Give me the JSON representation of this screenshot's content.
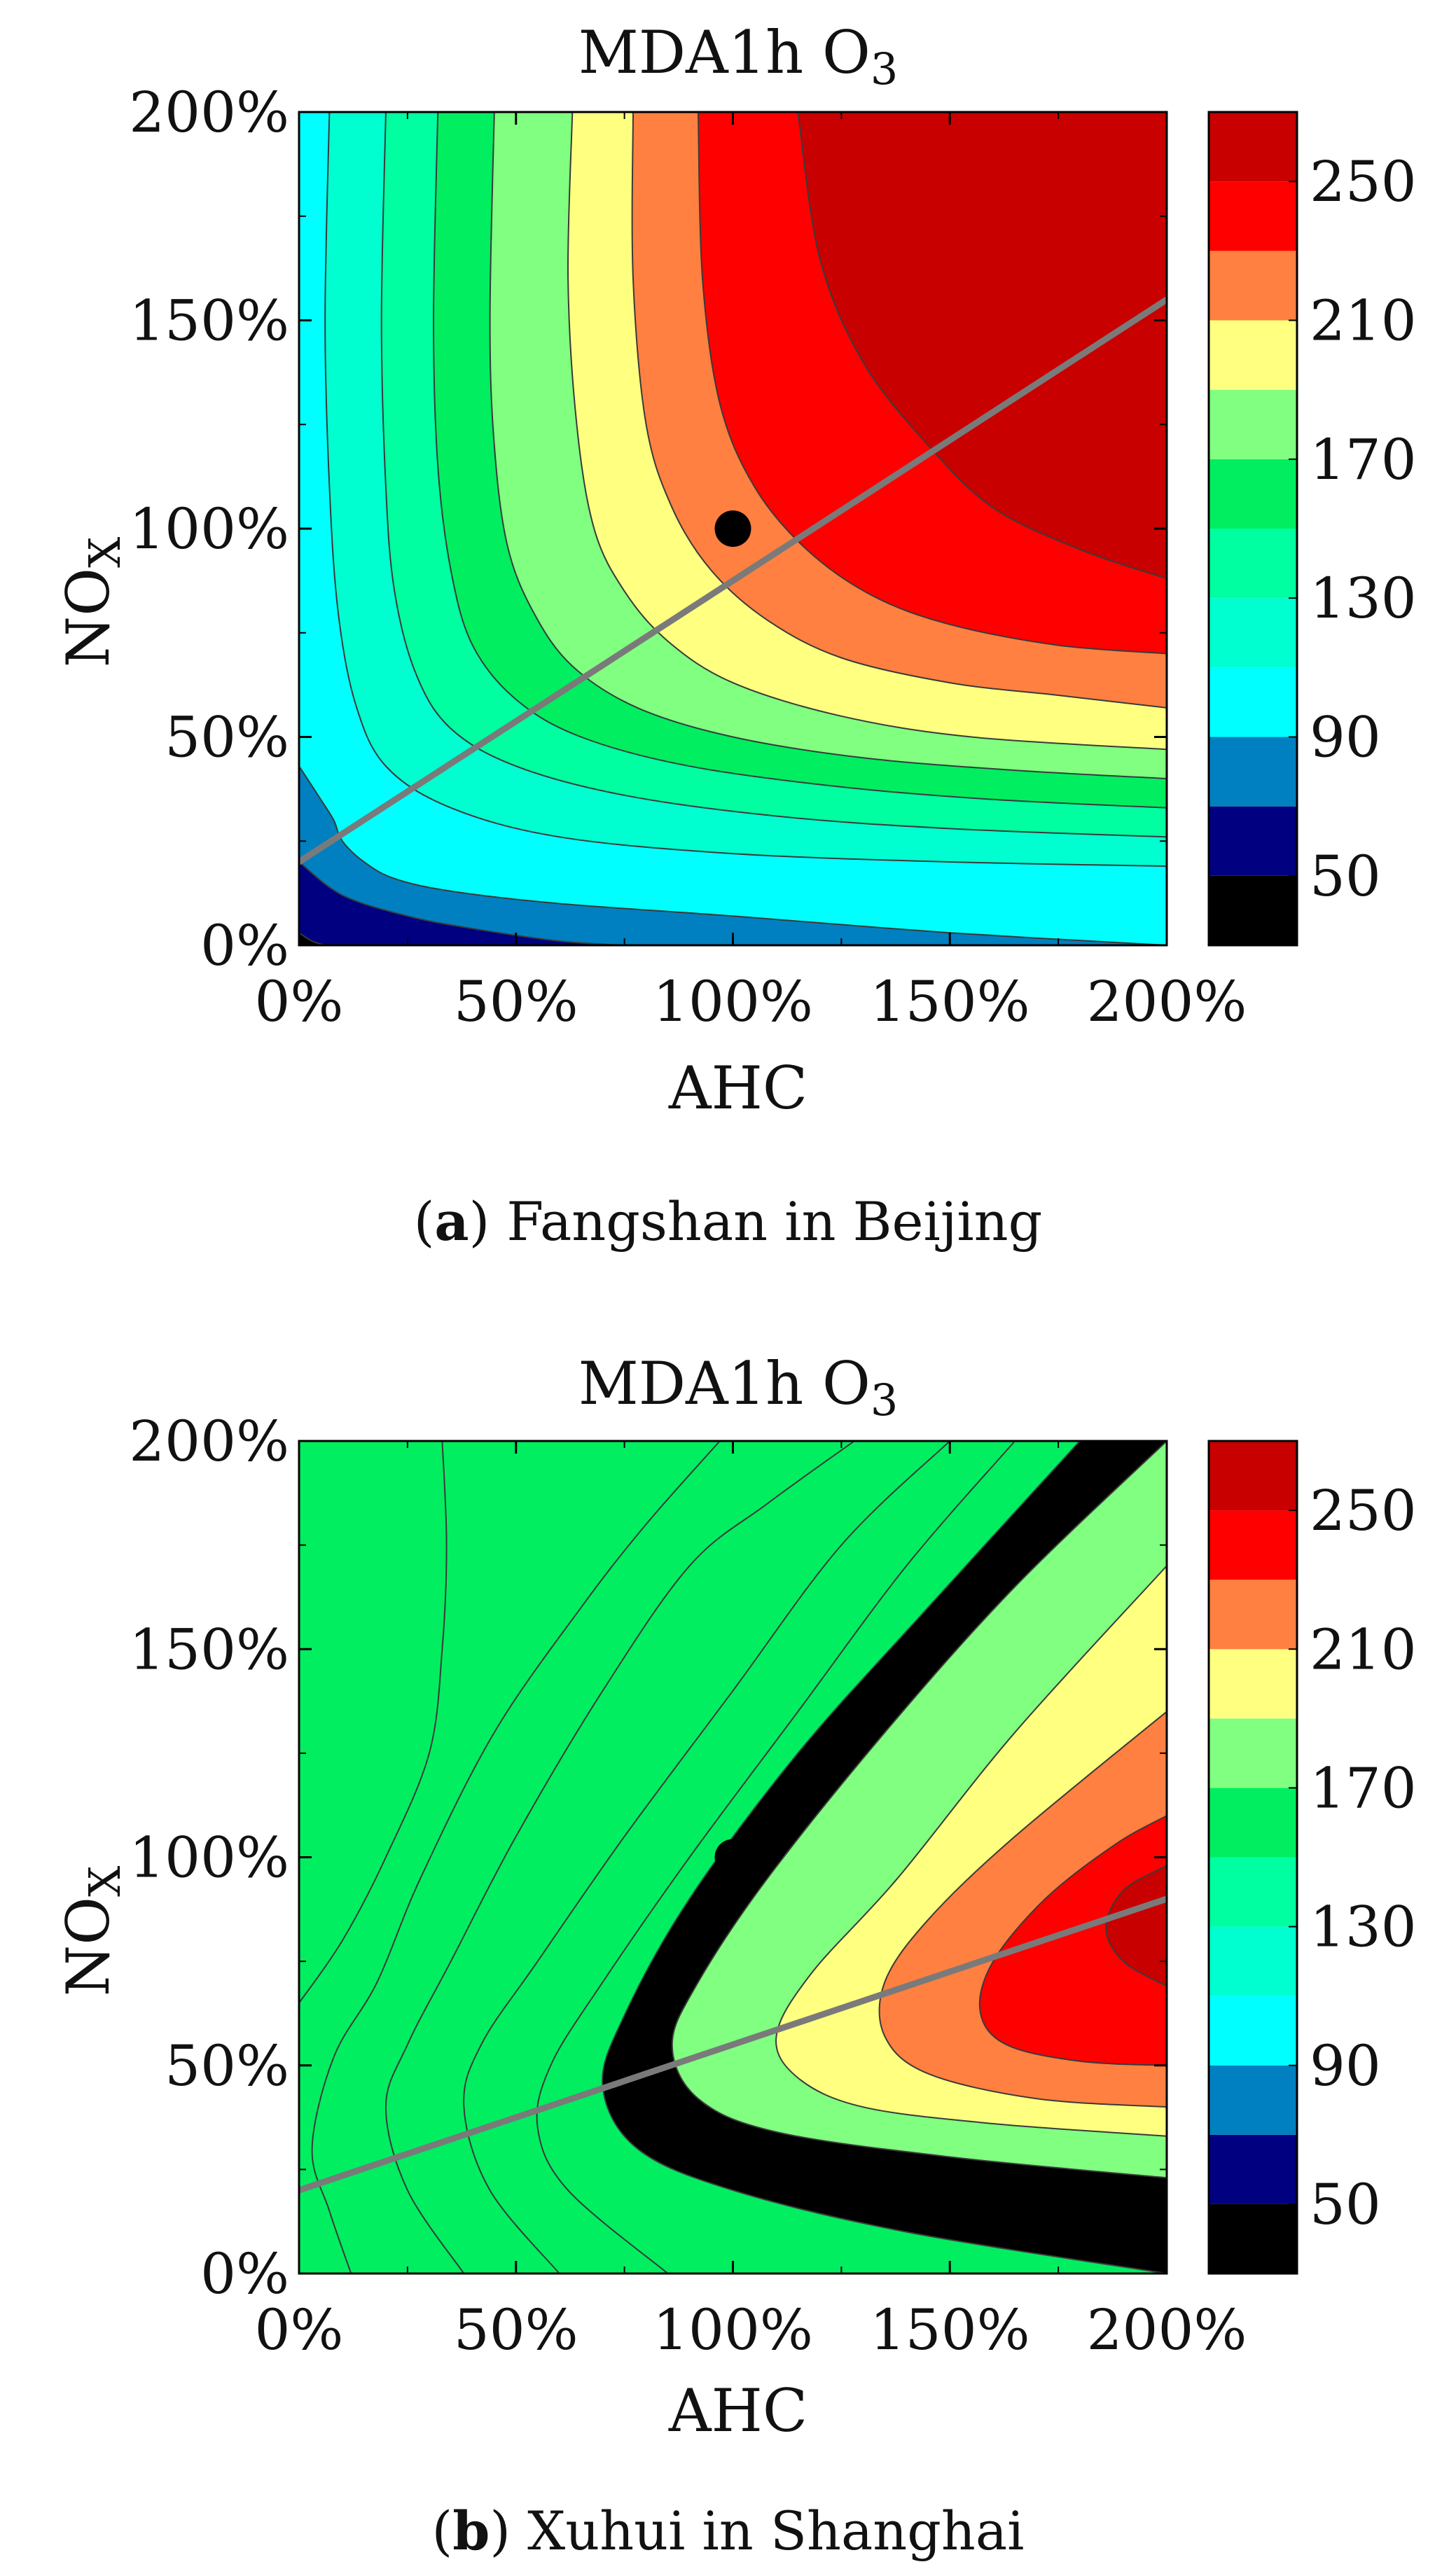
{
  "figure": {
    "panels": [
      {
        "label": "a",
        "caption": "Fangshan in Beijing",
        "title": "MDA1h O3",
        "xlabel": "AHC",
        "ylabel": "NOX"
      },
      {
        "label": "b",
        "caption": "Xuhui in Shanghai",
        "title": "MDA1h O3",
        "xlabel": "AHC",
        "ylabel": "NOX"
      }
    ]
  },
  "chart_data": [
    {
      "type": "heatmap",
      "title": "MDA1h O3",
      "xlabel": "AHC",
      "ylabel": "NOX",
      "xlim": [
        0,
        200
      ],
      "ylim": [
        0,
        200
      ],
      "xticks": [
        "0%",
        "50%",
        "100%",
        "150%",
        "200%"
      ],
      "yticks": [
        "0%",
        "50%",
        "100%",
        "150%",
        "200%"
      ],
      "colorbar": {
        "levels": [
          30,
          50,
          70,
          90,
          110,
          130,
          150,
          170,
          190,
          210,
          230,
          250,
          270
        ],
        "colors": [
          "#000000",
          "#000080",
          "#0080C0",
          "#00FFFF",
          "#00FFD0",
          "#00FFA0",
          "#00EE60",
          "#80FF80",
          "#FFFF80",
          "#FF8040",
          "#FF0000",
          "#C80000"
        ],
        "tick_labels": [
          "50",
          "90",
          "130",
          "170",
          "210",
          "250"
        ]
      },
      "base_point": {
        "x": 100,
        "y": 100
      },
      "ridge_line": {
        "x": [
          0,
          200
        ],
        "y": [
          20,
          155
        ]
      },
      "contours": [
        {
          "level": 50,
          "x": [
            0,
            3,
            6
          ],
          "y": [
            3,
            1,
            0
          ]
        },
        {
          "level": 70,
          "x": [
            0,
            10,
            25,
            40,
            60,
            75
          ],
          "y": [
            20,
            12,
            7,
            4,
            1,
            0
          ]
        },
        {
          "level": 90,
          "x": [
            0,
            5,
            8,
            10,
            15,
            22,
            35,
            60,
            100,
            150,
            200
          ],
          "y": [
            43,
            35,
            30,
            25,
            20,
            16,
            13,
            10,
            7,
            3,
            0
          ]
        },
        {
          "level": 110,
          "x": [
            7,
            6,
            7,
            9,
            13,
            20,
            35,
            60,
            100,
            150,
            200
          ],
          "y": [
            200,
            150,
            110,
            80,
            58,
            43,
            33,
            26,
            22,
            20,
            19
          ]
        },
        {
          "level": 130,
          "x": [
            20,
            19,
            20,
            22,
            27,
            35,
            50,
            75,
            110,
            150,
            200
          ],
          "y": [
            200,
            150,
            110,
            85,
            65,
            52,
            43,
            36,
            31,
            28,
            26
          ]
        },
        {
          "level": 150,
          "x": [
            32,
            31,
            32,
            35,
            40,
            50,
            65,
            90,
            125,
            160,
            200
          ],
          "y": [
            200,
            150,
            115,
            90,
            72,
            59,
            50,
            43,
            38,
            35,
            33
          ]
        },
        {
          "level": 170,
          "x": [
            45,
            44,
            45,
            48,
            54,
            63,
            78,
            100,
            130,
            165,
            200
          ],
          "y": [
            200,
            150,
            120,
            96,
            80,
            67,
            57,
            50,
            45,
            42,
            40
          ]
        },
        {
          "level": 190,
          "x": [
            63,
            62,
            64,
            68,
            75,
            85,
            100,
            125,
            155,
            200
          ],
          "y": [
            200,
            160,
            125,
            100,
            85,
            73,
            63,
            55,
            50,
            47
          ]
        },
        {
          "level": 210,
          "x": [
            77,
            77,
            80,
            86,
            95,
            108,
            125,
            150,
            175,
            200
          ],
          "y": [
            200,
            160,
            125,
            105,
            90,
            78,
            69,
            63,
            60,
            57
          ]
        },
        {
          "level": 230,
          "x": [
            92,
            93,
            97,
            105,
            117,
            132,
            150,
            175,
            200
          ],
          "y": [
            200,
            160,
            130,
            110,
            95,
            84,
            77,
            72,
            70
          ]
        },
        {
          "level": 250,
          "x": [
            115,
            120,
            130,
            145,
            160,
            180,
            200
          ],
          "y": [
            200,
            165,
            140,
            120,
            105,
            95,
            88
          ]
        }
      ]
    },
    {
      "type": "heatmap",
      "title": "MDA1h O3",
      "xlabel": "AHC",
      "ylabel": "NOX",
      "xlim": [
        0,
        200
      ],
      "ylim": [
        0,
        200
      ],
      "xticks": [
        "0%",
        "50%",
        "100%",
        "150%",
        "200%"
      ],
      "yticks": [
        "0%",
        "50%",
        "100%",
        "150%",
        "200%"
      ],
      "colorbar": {
        "levels": [
          30,
          50,
          70,
          90,
          110,
          130,
          150,
          170,
          190,
          210,
          230,
          250,
          270
        ],
        "colors": [
          "#000000",
          "#000080",
          "#0080C0",
          "#00FFFF",
          "#00FFD0",
          "#00FFA0",
          "#00EE60",
          "#80FF80",
          "#FFFF80",
          "#FF8040",
          "#FF0000",
          "#C80000"
        ],
        "tick_labels": [
          "50",
          "90",
          "130",
          "170",
          "210",
          "250"
        ]
      },
      "base_point": {
        "x": 100,
        "y": 100
      },
      "ridge_line": {
        "x": [
          0,
          200
        ],
        "y": [
          20,
          90
        ]
      },
      "contours": [
        {
          "level": 50,
          "x": [
            0,
            10,
            20,
            30,
            33,
            34,
            33
          ],
          "y": [
            65,
            80,
            100,
            125,
            150,
            175,
            200
          ]
        },
        {
          "level": 70,
          "x": [
            12,
            7,
            3,
            8,
            18,
            28,
            45,
            65,
            80,
            97
          ],
          "y": [
            0,
            15,
            30,
            52,
            70,
            95,
            130,
            160,
            180,
            200
          ]
        },
        {
          "level": 90,
          "x": [
            38,
            25,
            20,
            25,
            35,
            50,
            70,
            90,
            108,
            128
          ],
          "y": [
            0,
            20,
            40,
            55,
            75,
            105,
            140,
            170,
            185,
            200
          ]
        },
        {
          "level": 110,
          "x": [
            60,
            44,
            38,
            42,
            55,
            75,
            100,
            125,
            150
          ],
          "y": [
            0,
            20,
            40,
            55,
            75,
            105,
            140,
            175,
            200
          ]
        },
        {
          "level": 130,
          "x": [
            85,
            62,
            55,
            58,
            70,
            90,
            115,
            140,
            165
          ],
          "y": [
            0,
            20,
            35,
            50,
            70,
            100,
            135,
            170,
            200
          ]
        },
        {
          "level": 150,
          "x": [
            200,
            140,
            100,
            78,
            70,
            75,
            90,
            115,
            145,
            180
          ],
          "y": [
            0,
            10,
            20,
            30,
            45,
            62,
            90,
            125,
            160,
            200
          ]
        },
        {
          "level": 170,
          "x": [
            200,
            150,
            110,
            92,
            86,
            92,
            108,
            135,
            165,
            200
          ],
          "y": [
            23,
            28,
            34,
            42,
            55,
            70,
            95,
            130,
            165,
            200
          ]
        },
        {
          "level": 190,
          "x": [
            200,
            160,
            130,
            115,
            110,
            118,
            138,
            165,
            200
          ],
          "y": [
            33,
            36,
            40,
            47,
            57,
            72,
            95,
            130,
            170
          ]
        },
        {
          "level": 210,
          "x": [
            200,
            170,
            145,
            135,
            135,
            145,
            165,
            200
          ],
          "y": [
            40,
            42,
            48,
            57,
            70,
            85,
            105,
            135
          ]
        },
        {
          "level": 230,
          "x": [
            200,
            180,
            163,
            157,
            160,
            172,
            188,
            200
          ],
          "y": [
            50,
            51,
            55,
            63,
            75,
            90,
            103,
            110
          ]
        },
        {
          "level": 250,
          "x": [
            200,
            190,
            186,
            190,
            200
          ],
          "y": [
            69,
            75,
            83,
            92,
            98
          ]
        }
      ]
    }
  ]
}
